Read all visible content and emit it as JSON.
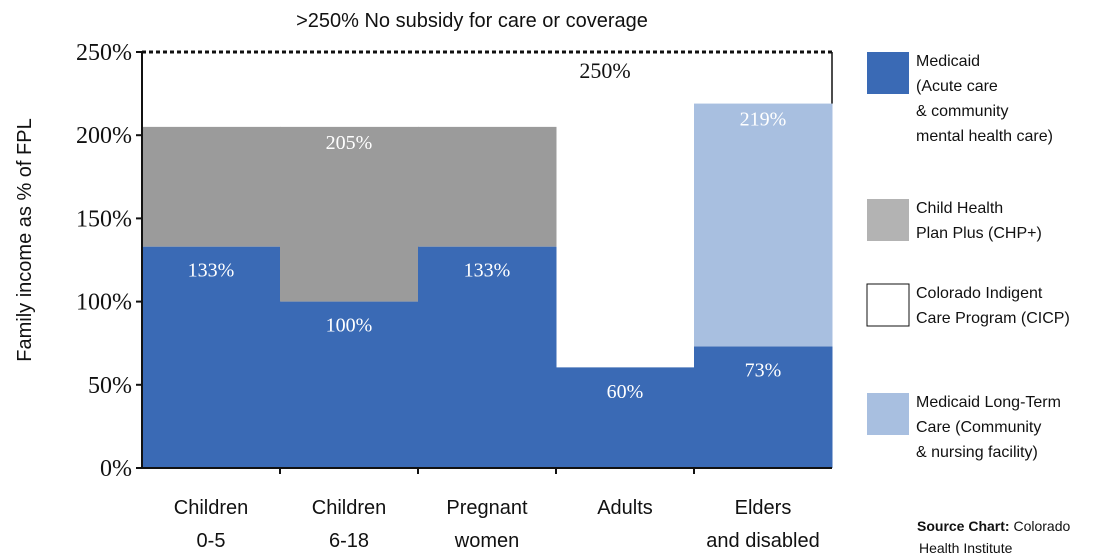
{
  "chart_data": {
    "type": "bar",
    "title": "",
    "top_note": ">250% No subsidy for care or coverage",
    "ylabel": "Family income as % of FPL",
    "xlabel": "",
    "ylim": [
      0,
      250
    ],
    "yticks": [
      0,
      50,
      100,
      150,
      200,
      250
    ],
    "ytick_labels": [
      "0%",
      "50%",
      "100%",
      "150%",
      "200%",
      "250%"
    ],
    "threshold": {
      "value": 250,
      "label": "250%"
    },
    "categories": [
      [
        "Children",
        "0-5"
      ],
      [
        "Children",
        "6-18"
      ],
      [
        "Pregnant",
        "women"
      ],
      [
        "Adults"
      ],
      [
        "Elders",
        "and disabled"
      ]
    ],
    "series": [
      {
        "name": "Medicaid (Acute care & community mental health care)",
        "color": "#3a6ab5",
        "values": [
          133,
          100,
          133,
          60,
          73
        ],
        "labels": [
          "133%",
          "100%",
          "133%",
          "60%",
          "73%"
        ]
      },
      {
        "name": "Child Health Plan Plus (CHP+)",
        "color": "#9b9b9b",
        "values": [
          205,
          205,
          205,
          null,
          null
        ],
        "labels": [
          "",
          "205%",
          "",
          "",
          ""
        ]
      },
      {
        "name": "Medicaid Long-Term Care (Community & nursing facility)",
        "color": "#a8bfe0",
        "values": [
          null,
          null,
          null,
          null,
          219
        ],
        "labels": [
          "",
          "",
          "",
          "",
          "219%"
        ]
      }
    ],
    "legend": {
      "placement": "right",
      "items": [
        {
          "lines": [
            "Medicaid",
            "(Acute care",
            "& community",
            "mental health care)"
          ],
          "color": "#3a6ab5",
          "border": false
        },
        {
          "lines": [
            "Child Health",
            "Plan Plus (CHP+)"
          ],
          "color": "#b3b3b3",
          "border": false
        },
        {
          "lines": [
            "Colorado Indigent",
            "Care Program (CICP)"
          ],
          "color": "#ffffff",
          "border": true
        },
        {
          "lines": [
            "Medicaid Long-Term",
            "Care (Community",
            "& nursing facility)"
          ],
          "color": "#a8bfe0",
          "border": false
        }
      ]
    },
    "source": {
      "bold": "Source Chart:",
      "lines": [
        "Colorado",
        "Health Institute"
      ]
    }
  }
}
